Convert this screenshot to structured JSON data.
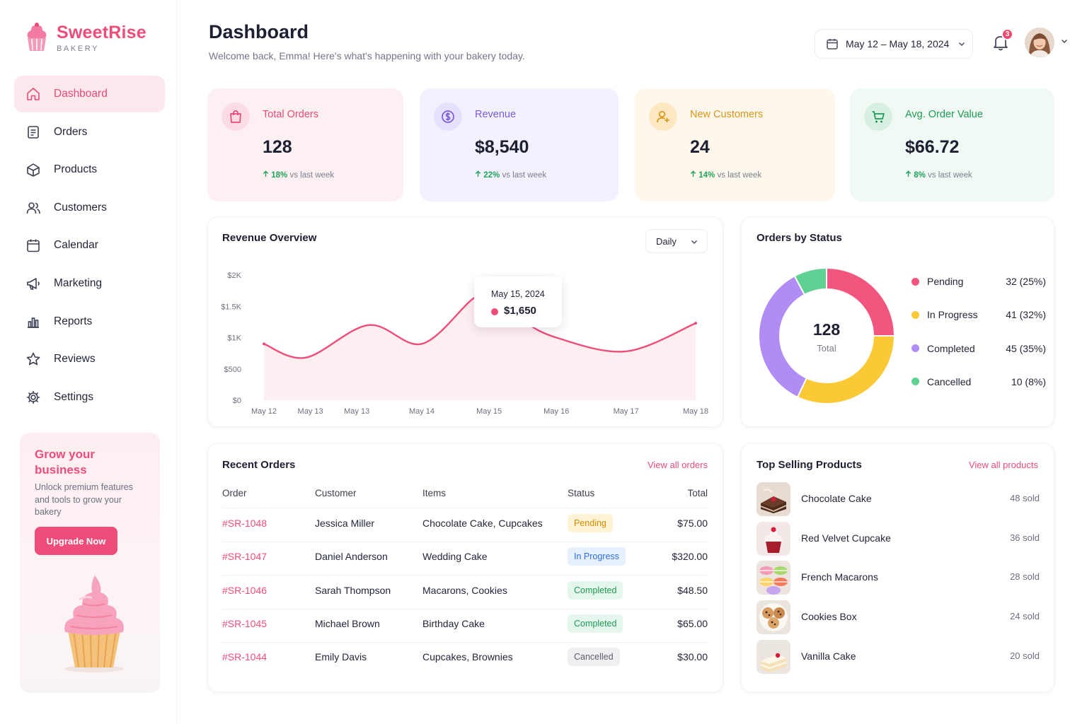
{
  "brand": {
    "name": "SweetRise",
    "sub": "BAKERY"
  },
  "nav": [
    {
      "label": "Dashboard",
      "icon": "home-icon",
      "active": true
    },
    {
      "label": "Orders",
      "icon": "orders-icon"
    },
    {
      "label": "Products",
      "icon": "products-icon"
    },
    {
      "label": "Customers",
      "icon": "customers-icon"
    },
    {
      "label": "Calendar",
      "icon": "calendar-icon"
    },
    {
      "label": "Marketing",
      "icon": "megaphone-icon"
    },
    {
      "label": "Reports",
      "icon": "reports-icon"
    },
    {
      "label": "Reviews",
      "icon": "star-icon"
    },
    {
      "label": "Settings",
      "icon": "gear-icon"
    }
  ],
  "promo": {
    "title": "Grow your business",
    "text": "Unlock premium features and tools to grow your bakery",
    "button": "Upgrade Now"
  },
  "header": {
    "title": "Dashboard",
    "subtitle": "Welcome back, Emma! Here's what's happening with your bakery today.",
    "date_range": "May 12 – May 18, 2024",
    "notifications": "3"
  },
  "stats": [
    {
      "label": "Total Orders",
      "value": "128",
      "pct": "18%",
      "suffix": "vs last week",
      "icon": "shopping-bag-icon",
      "color": "#e94a78"
    },
    {
      "label": "Revenue",
      "value": "$8,540",
      "pct": "22%",
      "suffix": "vs last week",
      "icon": "dollar-coin-icon",
      "color": "#7b5bd6"
    },
    {
      "label": "New Customers",
      "value": "24",
      "pct": "14%",
      "suffix": "vs last week",
      "icon": "add-user-icon",
      "color": "#d9961a"
    },
    {
      "label": "Avg. Order Value",
      "value": "$66.72",
      "pct": "8%",
      "suffix": "vs last week",
      "icon": "cart-icon",
      "color": "#1f9a55"
    }
  ],
  "revenue": {
    "title": "Revenue Overview",
    "period": "Daily",
    "tooltip_date": "May 15, 2024",
    "tooltip_value": "$1,650"
  },
  "chart_data": {
    "type": "area",
    "title": "Revenue Overview",
    "x": [
      "May 12",
      "May 13",
      "May 13",
      "May 14",
      "May 15",
      "May 16",
      "May 17",
      "May 18"
    ],
    "x_tick_positions": [
      0,
      1,
      2,
      3.4,
      4.85,
      6.3,
      7.8,
      9.3
    ],
    "series": [
      {
        "name": "",
        "x": [
          0,
          0.9,
          2.25,
          3.4,
          4.5,
          4.85,
          5.5,
          6.3,
          7.8,
          9.3
        ],
        "values": [
          900,
          680,
          1200,
          900,
          1620,
          1650,
          1300,
          1000,
          780,
          1230
        ]
      }
    ],
    "yticks": [
      "$2K",
      "$1.5K",
      "$1K",
      "$500",
      "$0"
    ],
    "ylim": [
      0,
      2000
    ],
    "highlight": {
      "x": "May 15",
      "value": 1650
    },
    "color": "#ee4d7a"
  },
  "status_chart": {
    "title": "Orders by Status",
    "total": "128",
    "total_label": "Total",
    "segments": [
      {
        "name": "Pending",
        "count": 32,
        "label": "32 (25%)",
        "color": "#f2557d"
      },
      {
        "name": "In Progress",
        "count": 41,
        "label": "41 (32%)",
        "color": "#fbc936"
      },
      {
        "name": "Completed",
        "count": 45,
        "label": "45 (35%)",
        "color": "#b18cf5"
      },
      {
        "name": "Cancelled",
        "count": 10,
        "label": "10 (8%)",
        "color": "#5fd193"
      }
    ]
  },
  "recent_orders": {
    "title": "Recent Orders",
    "link": "View all orders",
    "columns": [
      "Order",
      "Customer",
      "Items",
      "Status",
      "Total"
    ],
    "rows": [
      {
        "id": "#SR-1048",
        "customer": "Jessica Miller",
        "items": "Chocolate Cake, Cupcakes",
        "status": "Pending",
        "total": "$75.00"
      },
      {
        "id": "#SR-1047",
        "customer": "Daniel Anderson",
        "items": "Wedding Cake",
        "status": "In Progress",
        "total": "$320.00"
      },
      {
        "id": "#SR-1046",
        "customer": "Sarah Thompson",
        "items": "Macarons, Cookies",
        "status": "Completed",
        "total": "$48.50"
      },
      {
        "id": "#SR-1045",
        "customer": "Michael Brown",
        "items": "Birthday Cake",
        "status": "Completed",
        "total": "$65.00"
      },
      {
        "id": "#SR-1044",
        "customer": "Emily Davis",
        "items": "Cupcakes, Brownies",
        "status": "Cancelled",
        "total": "$30.00"
      }
    ]
  },
  "status_styles": {
    "Pending": {
      "bg": "#fff3d6",
      "fg": "#d48a00"
    },
    "In Progress": {
      "bg": "#e6f0ff",
      "fg": "#2f6fdc"
    },
    "Completed": {
      "bg": "#e5f7ec",
      "fg": "#1f9a55"
    },
    "Cancelled": {
      "bg": "#f0f0f3",
      "fg": "#5d6070"
    }
  },
  "top_products": {
    "title": "Top Selling Products",
    "link": "View all products",
    "items": [
      {
        "name": "Chocolate Cake",
        "sold": "48 sold",
        "img": "chocolate-cake"
      },
      {
        "name": "Red Velvet Cupcake",
        "sold": "36 sold",
        "img": "red-velvet-cupcake"
      },
      {
        "name": "French Macarons",
        "sold": "28 sold",
        "img": "french-macarons"
      },
      {
        "name": "Cookies Box",
        "sold": "24 sold",
        "img": "cookies-box"
      },
      {
        "name": "Vanilla Cake",
        "sold": "20 sold",
        "img": "vanilla-cake"
      }
    ]
  }
}
